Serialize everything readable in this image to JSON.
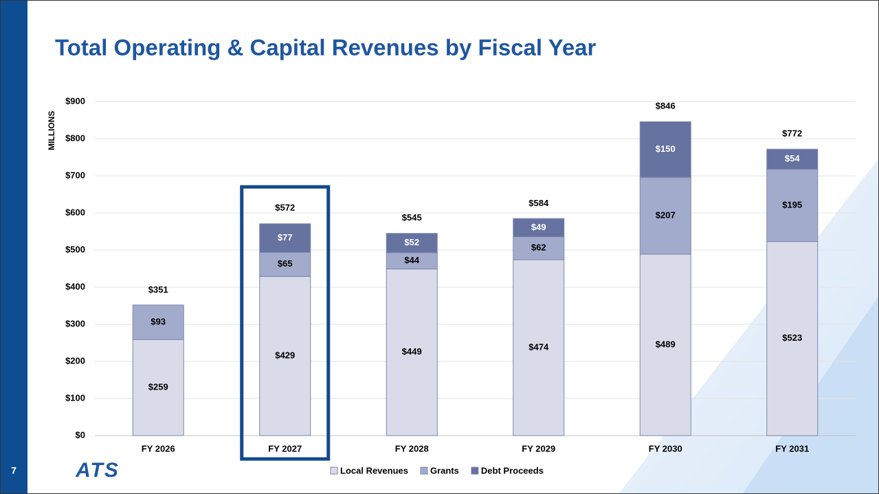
{
  "page_number": "7",
  "logo": "ATS",
  "chart_data": {
    "type": "stacked_bar",
    "title": "Total Operating & Capital Revenues by Fiscal Year",
    "y_axis_label": "MILLIONS",
    "categories": [
      "FY 2026",
      "FY 2027",
      "FY 2028",
      "FY 2029",
      "FY 2030",
      "FY 2031"
    ],
    "series": [
      {
        "name": "Local Revenues",
        "color": "#d9dbe8",
        "values": [
          259,
          429,
          449,
          474,
          489,
          523
        ],
        "value_labels": [
          "$259",
          "$429",
          "$449",
          "$474",
          "$489",
          "$523"
        ]
      },
      {
        "name": "Grants",
        "color": "#a3abcd",
        "values": [
          93,
          65,
          44,
          62,
          207,
          195
        ],
        "value_labels": [
          "$93",
          "$65",
          "$44",
          "$62",
          "$207",
          "$195"
        ]
      },
      {
        "name": "Debt Proceeds",
        "color": "#66729f",
        "values": [
          null,
          77,
          52,
          49,
          150,
          54
        ],
        "value_labels": [
          null,
          "$77",
          "$52",
          "$49",
          "$150",
          "$54"
        ]
      }
    ],
    "totals": {
      "values": [
        351,
        572,
        545,
        584,
        846,
        772
      ],
      "value_labels": [
        "$351",
        "$572",
        "$545",
        "$584",
        "$846",
        "$772"
      ]
    },
    "ylim": [
      0,
      900
    ],
    "yticks": [
      {
        "value": 0,
        "label": "$0"
      },
      {
        "value": 100,
        "label": "$100"
      },
      {
        "value": 200,
        "label": "$200"
      },
      {
        "value": 300,
        "label": "$300"
      },
      {
        "value": 400,
        "label": "$400"
      },
      {
        "value": 500,
        "label": "$500"
      },
      {
        "value": 600,
        "label": "$600"
      },
      {
        "value": 700,
        "label": "$700"
      },
      {
        "value": 800,
        "label": "$800"
      },
      {
        "value": 900,
        "label": "$900"
      }
    ],
    "grid": true,
    "legend": "bottom"
  }
}
